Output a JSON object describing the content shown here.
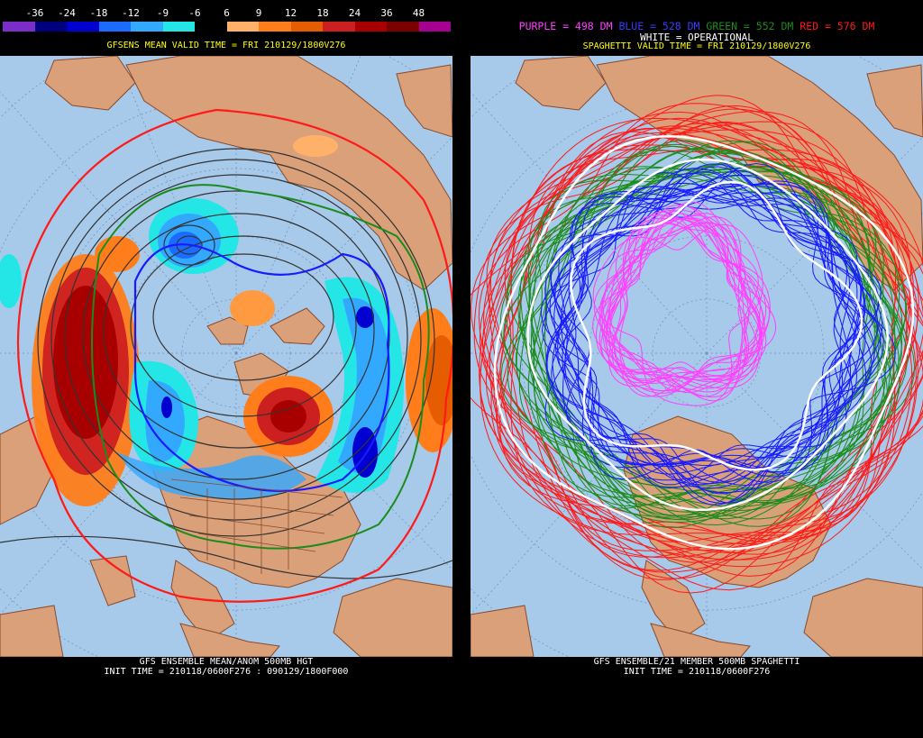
{
  "colorbar": {
    "labels": [
      "-36",
      "-24",
      "-18",
      "-12",
      "-9",
      "-6",
      "6",
      "9",
      "12",
      "18",
      "24",
      "36",
      "48"
    ],
    "colors": [
      "#7a2ec7",
      "#00007f",
      "#0000d0",
      "#1a6cff",
      "#33a8ff",
      "#25e6e6",
      "#000000",
      "#ffb16a",
      "#ff7d1a",
      "#e65c00",
      "#cc1f1f",
      "#a80000",
      "#7a0000",
      "#a5008f"
    ]
  },
  "left": {
    "valid_time": "GFSENS MEAN VALID TIME = FRI 210129/1800V276",
    "footer_line1": "GFS ENSEMBLE MEAN/ANOM 500MB HGT",
    "footer_line2": "INIT TIME = 210118/0600F276 : 090129/1800F000"
  },
  "right": {
    "legend_purple": "PURPLE = 498 DM",
    "legend_blue": "BLUE = 528 DM",
    "legend_green": "GREEN = 552 DM",
    "legend_red": "RED = 576 DM",
    "legend_white": "WHITE = OPERATIONAL",
    "valid_time": "SPAGHETTI VALID TIME = FRI 210129/1800V276",
    "footer_line1": "GFS ENSEMBLE/21 MEMBER 500MB SPAGHETTI",
    "footer_line2": "INIT TIME = 210118/0600F276"
  },
  "colors": {
    "ocean": "#a7c9ea",
    "land": "#d9a07a",
    "coast": "#8b4a2b",
    "purple": "#ff40ff",
    "blue": "#1a1aff",
    "green": "#1a8c1a",
    "red": "#ff1a1a"
  }
}
